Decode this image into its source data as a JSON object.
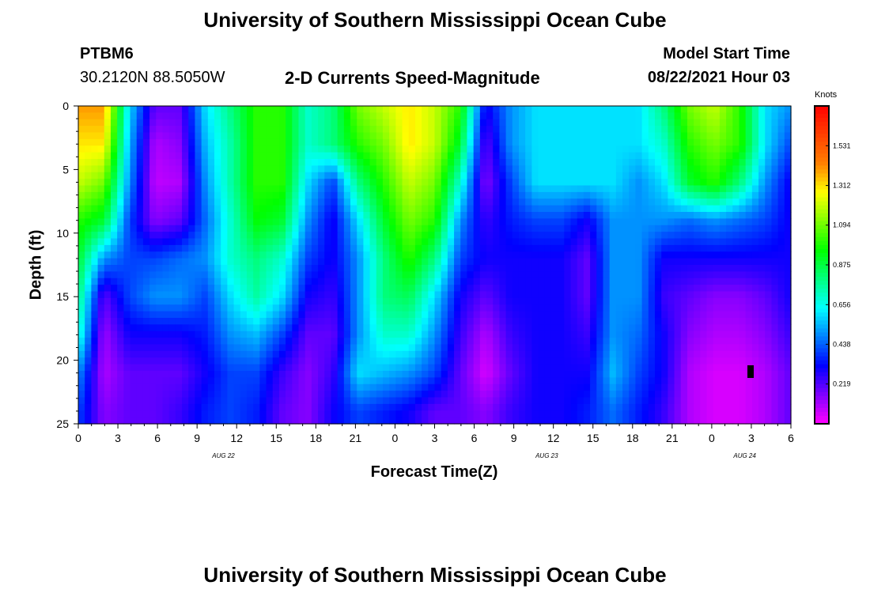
{
  "header": {
    "title": "University of Southern Mississippi Ocean Cube",
    "station": "PTBM6",
    "coords": "30.2120N  88.5050W",
    "subtitle": "2-D Currents Speed-Magnitude",
    "model_label": "Model Start Time",
    "model_time": "08/22/2021 Hour 03"
  },
  "footer": {
    "title": "University of Southern Mississippi Ocean Cube"
  },
  "chart_data": {
    "type": "heatmap",
    "xlabel": "Forecast Time(Z)",
    "ylabel": "Depth (ft)",
    "x_ticks": [
      "0",
      "3",
      "6",
      "9",
      "12",
      "15",
      "18",
      "21",
      "0",
      "3",
      "6",
      "9",
      "12",
      "15",
      "18",
      "21",
      "0",
      "3",
      "6"
    ],
    "x_tick_hours": [
      0,
      3,
      6,
      9,
      12,
      15,
      18,
      21,
      24,
      27,
      30,
      33,
      36,
      39,
      42,
      45,
      48,
      51,
      54
    ],
    "xlim": [
      0,
      54
    ],
    "date_labels": [
      {
        "text": "AUG 22",
        "hour": 11
      },
      {
        "text": "AUG 23",
        "hour": 35.5
      },
      {
        "text": "AUG 24",
        "hour": 50.5
      }
    ],
    "y_ticks": [
      "0",
      "5",
      "10",
      "15",
      "20",
      "25"
    ],
    "y_tick_values": [
      0,
      5,
      10,
      15,
      20,
      25
    ],
    "ylim": [
      0,
      25
    ],
    "colorbar": {
      "title": "Knots",
      "labels": [
        "1.531",
        "1.312",
        "1.094",
        "0.875",
        "0.656",
        "0.438",
        "0.219"
      ],
      "label_values": [
        1.531,
        1.312,
        1.094,
        0.875,
        0.656,
        0.438,
        0.219
      ],
      "range": [
        0,
        1.75
      ],
      "colors": [
        "#ff00ff",
        "#8000ff",
        "#0000ff",
        "#0080ff",
        "#00ffff",
        "#00ff80",
        "#00ff00",
        "#80ff00",
        "#ffff00",
        "#ff8000",
        "#ff4000",
        "#ff0000"
      ]
    },
    "series": [
      {
        "depth": 0,
        "values": [
          1.4,
          1.4,
          0.6,
          0.2,
          0.2,
          0.6,
          0.8,
          1.0,
          1.0,
          0.7,
          0.8,
          1.1,
          1.2,
          1.3,
          1.2,
          1.0,
          0.3,
          0.5,
          0.6,
          0.6,
          0.6,
          0.6,
          0.6,
          0.8,
          1.1,
          1.2,
          1.0,
          0.6,
          0.5
        ]
      },
      {
        "depth": 3,
        "values": [
          1.3,
          1.3,
          0.55,
          0.1,
          0.15,
          0.55,
          0.75,
          1.0,
          1.0,
          0.7,
          0.8,
          1.0,
          1.1,
          1.3,
          1.2,
          0.9,
          0.2,
          0.5,
          0.6,
          0.6,
          0.6,
          0.6,
          0.6,
          0.7,
          1.0,
          1.1,
          1.0,
          0.6,
          0.4
        ]
      },
      {
        "depth": 6,
        "values": [
          1.2,
          1.1,
          0.5,
          0.08,
          0.1,
          0.5,
          0.75,
          1.0,
          1.0,
          0.6,
          0.4,
          0.8,
          1.0,
          1.2,
          1.1,
          0.7,
          0.15,
          0.4,
          0.6,
          0.6,
          0.6,
          0.6,
          0.5,
          0.6,
          0.9,
          1.0,
          0.8,
          0.5,
          0.3
        ]
      },
      {
        "depth": 9,
        "values": [
          1.0,
          0.9,
          0.4,
          0.15,
          0.2,
          0.45,
          0.7,
          0.95,
          0.9,
          0.5,
          0.3,
          0.6,
          0.9,
          1.1,
          1.0,
          0.5,
          0.25,
          0.35,
          0.4,
          0.4,
          0.3,
          0.5,
          0.5,
          0.5,
          0.45,
          0.5,
          0.45,
          0.4,
          0.3
        ]
      },
      {
        "depth": 12,
        "values": [
          0.9,
          0.5,
          0.4,
          0.4,
          0.45,
          0.5,
          0.7,
          0.8,
          0.7,
          0.4,
          0.3,
          0.5,
          0.8,
          1.0,
          0.8,
          0.4,
          0.3,
          0.3,
          0.3,
          0.3,
          0.2,
          0.5,
          0.5,
          0.3,
          0.3,
          0.3,
          0.3,
          0.3,
          0.3
        ]
      },
      {
        "depth": 15,
        "values": [
          0.8,
          0.2,
          0.4,
          0.5,
          0.5,
          0.4,
          0.6,
          0.75,
          0.6,
          0.3,
          0.25,
          0.5,
          0.8,
          0.85,
          0.6,
          0.3,
          0.2,
          0.3,
          0.3,
          0.3,
          0.2,
          0.5,
          0.5,
          0.25,
          0.2,
          0.15,
          0.15,
          0.2,
          0.3
        ]
      },
      {
        "depth": 18,
        "values": [
          0.7,
          0.12,
          0.3,
          0.3,
          0.3,
          0.35,
          0.5,
          0.55,
          0.4,
          0.2,
          0.2,
          0.5,
          0.7,
          0.7,
          0.5,
          0.25,
          0.1,
          0.25,
          0.3,
          0.3,
          0.25,
          0.5,
          0.45,
          0.3,
          0.15,
          0.1,
          0.1,
          0.15,
          0.25
        ]
      },
      {
        "depth": 21,
        "values": [
          0.5,
          0.1,
          0.2,
          0.2,
          0.2,
          0.3,
          0.4,
          0.4,
          0.25,
          0.15,
          0.25,
          0.6,
          0.55,
          0.5,
          0.4,
          0.2,
          0.05,
          0.2,
          0.3,
          0.3,
          0.3,
          0.55,
          0.4,
          0.3,
          0.1,
          0.05,
          0.05,
          0.1,
          0.2
        ]
      },
      {
        "depth": 24,
        "values": [
          0.4,
          0.15,
          0.2,
          0.2,
          0.25,
          0.35,
          0.4,
          0.35,
          0.2,
          0.15,
          0.3,
          0.4,
          0.35,
          0.3,
          0.2,
          0.2,
          0.15,
          0.25,
          0.3,
          0.3,
          0.35,
          0.45,
          0.35,
          0.25,
          0.1,
          0.05,
          0.05,
          0.1,
          0.2
        ]
      }
    ]
  }
}
